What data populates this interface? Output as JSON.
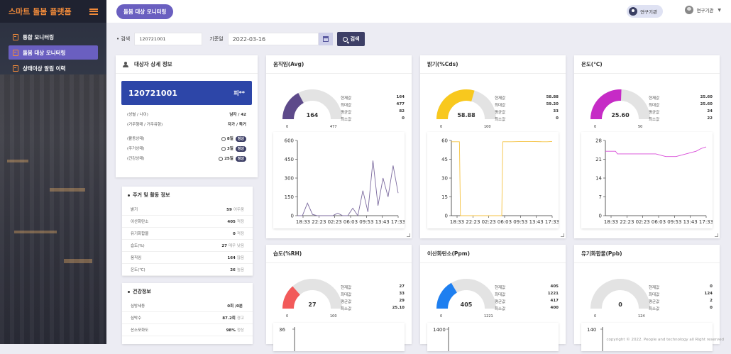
{
  "app": {
    "title": "스마트 돌봄 플랫폼"
  },
  "sidebar": {
    "items": [
      {
        "label": "통합 모니터링",
        "active": false
      },
      {
        "label": "돌봄 대상 모니터링",
        "active": true
      },
      {
        "label": "상태이상 알림 이력",
        "active": false
      }
    ]
  },
  "header": {
    "page_pill": "돌봄 대상 모니터링",
    "org_label": "연구기관",
    "user_label": "연구기관"
  },
  "search": {
    "label": "검색",
    "value": "120721001",
    "date_label": "기준일",
    "date_value": "2022-03-16",
    "button_label": "검색"
  },
  "detail": {
    "title": "대상자 상세 정보",
    "id": "120721001",
    "name": "피**",
    "rows": [
      {
        "label": "(성별 / 나이)",
        "value": "남자 / 42"
      },
      {
        "label": "(거주형태 / 거주유형)",
        "value": "자가 / 독거"
      }
    ],
    "status": [
      {
        "label": "(활동상태)",
        "value": "8일",
        "tag": "정상"
      },
      {
        "label": "(주거상태)",
        "value": "3일",
        "tag": "정상"
      },
      {
        "label": "(건강상태)",
        "value": "25일",
        "tag": "정상"
      }
    ]
  },
  "housing": {
    "title": "주거 및 활동 정보",
    "rows": [
      {
        "label": "밝기",
        "value": "59",
        "unit": "어두움"
      },
      {
        "label": "이산화탄소",
        "value": "405",
        "unit": "적정"
      },
      {
        "label": "유기화합물",
        "value": "0",
        "unit": "적정"
      },
      {
        "label": "습도(%)",
        "value": "27",
        "unit": "매우 낮음"
      },
      {
        "label": "움직임",
        "value": "164",
        "unit": "많음"
      },
      {
        "label": "온도(℃)",
        "value": "26",
        "unit": "높음"
      }
    ]
  },
  "health": {
    "title": "건강정보",
    "rows": [
      {
        "label": "심방세동",
        "value": "0회 /0분",
        "unit": ""
      },
      {
        "label": "심박수",
        "value": "87.2회",
        "unit": "경고"
      },
      {
        "label": "산소포화도",
        "value": "98%",
        "unit": "정상"
      }
    ]
  },
  "stat_labels": [
    "현재값",
    "최대값",
    "평균값",
    "최소값"
  ],
  "sensors": [
    {
      "title": "움직임(Avg)",
      "color": "#5d4a8a",
      "current": 164,
      "max": 477,
      "avg": 82,
      "min": 0,
      "display": "164",
      "gauge_max": "477",
      "stats": [
        "164",
        "477",
        "82",
        "0"
      ]
    },
    {
      "title": "밝기(%Cds)",
      "color": "#f8c81e",
      "current": 58.88,
      "max": 100,
      "avg": 33,
      "min": 0,
      "display": "58.88",
      "gauge_max": "100",
      "stats": [
        "58.88",
        "59.20",
        "33",
        "0"
      ]
    },
    {
      "title": "온도(℃)",
      "color": "#c62bc6",
      "current": 25.6,
      "max": 50,
      "avg": 24,
      "min": 22,
      "display": "25.60",
      "gauge_max": "50",
      "stats": [
        "25.60",
        "25.60",
        "24",
        "22"
      ]
    },
    {
      "title": "습도(%RH)",
      "color": "#f25a5a",
      "current": 27,
      "max": 100,
      "avg": 29,
      "min": 25.1,
      "display": "27",
      "gauge_max": "100",
      "stats": [
        "27",
        "33",
        "29",
        "25.10"
      ]
    },
    {
      "title": "이산화탄소(Ppm)",
      "color": "#1e7ff0",
      "current": 405,
      "max": 1221,
      "avg": 417,
      "min": 400,
      "display": "405",
      "gauge_max": "1221",
      "stats": [
        "405",
        "1221",
        "417",
        "400"
      ]
    },
    {
      "title": "유기화합물(Ppb)",
      "color": "#dddddd",
      "current": 0,
      "max": 124,
      "avg": 2,
      "min": 0,
      "display": "0",
      "gauge_max": "124",
      "stats": [
        "0",
        "124",
        "2",
        "0"
      ]
    }
  ],
  "chart_data": [
    {
      "type": "line",
      "title": "움직임(Avg)",
      "color": "#7b6a9e",
      "ylim": [
        0,
        600
      ],
      "yticks": [
        0,
        150,
        300,
        450,
        600
      ],
      "xticks": [
        "18:33",
        "22:23",
        "02:23",
        "06:03",
        "09:53",
        "13:43",
        "17:33"
      ],
      "x": [
        0,
        5,
        10,
        15,
        20,
        25,
        30,
        35,
        40,
        45,
        50,
        55,
        60,
        65,
        70,
        75,
        80,
        85,
        90,
        95,
        100
      ],
      "y": [
        0,
        0,
        100,
        10,
        0,
        0,
        0,
        0,
        20,
        0,
        0,
        60,
        0,
        200,
        30,
        440,
        80,
        300,
        150,
        400,
        180
      ]
    },
    {
      "type": "line",
      "title": "밝기(%Cds)",
      "color": "#f5c242",
      "ylim": [
        0,
        60
      ],
      "yticks": [
        0,
        15,
        30,
        45,
        60
      ],
      "xticks": [
        "18:33",
        "22:23",
        "02:23",
        "06:03",
        "09:53",
        "13:43",
        "17:33"
      ],
      "x": [
        0,
        8,
        9,
        50,
        51,
        60,
        70,
        80,
        90,
        95,
        100
      ],
      "y": [
        59,
        59,
        0,
        0,
        59,
        59,
        59.2,
        59.2,
        59,
        59,
        59.2
      ]
    },
    {
      "type": "line",
      "title": "온도(℃)",
      "color": "#d84bd8",
      "ylim": [
        0,
        28
      ],
      "yticks": [
        0,
        7,
        14,
        21,
        28
      ],
      "xticks": [
        "18:33",
        "22:23",
        "02:23",
        "06:03",
        "09:53",
        "13:43",
        "17:33"
      ],
      "x": [
        0,
        10,
        12,
        30,
        40,
        50,
        60,
        64,
        70,
        75,
        80,
        85,
        90,
        95,
        100
      ],
      "y": [
        24,
        24,
        23,
        23,
        23,
        23,
        22,
        22,
        22,
        22.5,
        23,
        23.5,
        24,
        25,
        25.6
      ]
    },
    {
      "type": "line",
      "title": "습도(%RH)",
      "ylim": [
        0,
        36
      ],
      "yticks": [
        36
      ]
    },
    {
      "type": "line",
      "title": "이산화탄소(Ppm)",
      "ylim": [
        0,
        1400
      ],
      "yticks": [
        1400
      ]
    },
    {
      "type": "line",
      "title": "유기화합물(Ppb)",
      "ylim": [
        0,
        140
      ],
      "yticks": [
        140
      ]
    }
  ],
  "footer": {
    "text": "copyright © 2022. People and technology all Right reserved"
  }
}
